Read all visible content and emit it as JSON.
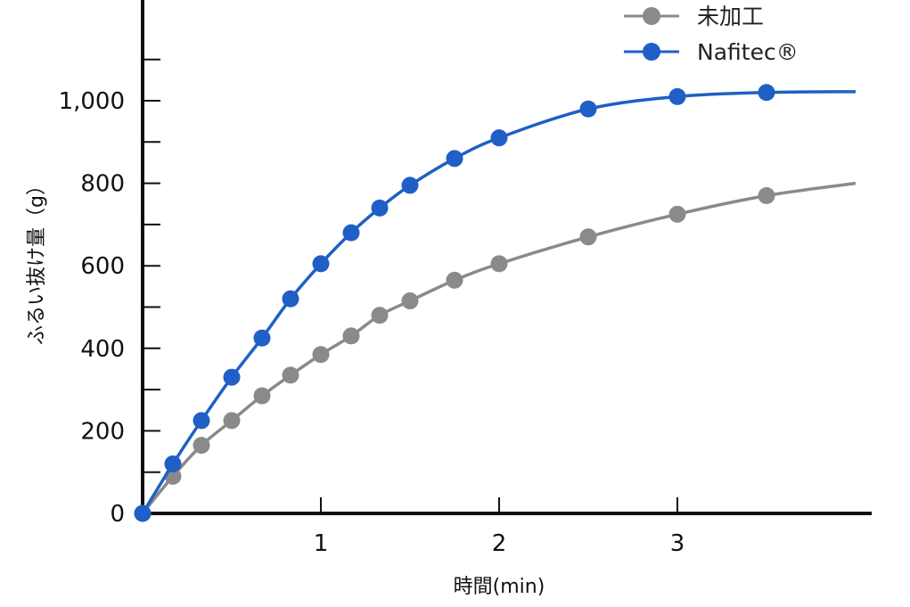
{
  "chart_data": {
    "type": "line",
    "title": "",
    "xlabel": "時間(min)",
    "ylabel": "ふるい抜け量（g）",
    "xlim": [
      0,
      4.1
    ],
    "ylim": [
      0,
      1200
    ],
    "x_ticks": [
      1,
      2,
      3
    ],
    "x_tick_labels": [
      "1",
      "2",
      "3"
    ],
    "y_ticks": [
      0,
      200,
      400,
      600,
      800,
      1000
    ],
    "y_tick_labels": [
      "0",
      "200",
      "400",
      "600",
      "800",
      "1,000"
    ],
    "y_minor_ticks": [
      100,
      300,
      500,
      700,
      900,
      1100
    ],
    "grid": false,
    "legend": "top-right",
    "series": [
      {
        "name": "未加工",
        "color": "#8a8a8a",
        "points": [
          [
            0,
            0
          ],
          [
            0.17,
            90
          ],
          [
            0.33,
            165
          ],
          [
            0.5,
            225
          ],
          [
            0.67,
            285
          ],
          [
            0.83,
            335
          ],
          [
            1.0,
            385
          ],
          [
            1.17,
            430
          ],
          [
            1.33,
            480
          ],
          [
            1.5,
            515
          ],
          [
            1.75,
            565
          ],
          [
            2.0,
            605
          ],
          [
            2.5,
            670
          ],
          [
            3.0,
            725
          ],
          [
            3.5,
            770
          ]
        ],
        "line_end": [
          4.0,
          800
        ]
      },
      {
        "name": "Nafitec®",
        "color": "#1f5fc6",
        "points": [
          [
            0,
            0
          ],
          [
            0.17,
            120
          ],
          [
            0.33,
            225
          ],
          [
            0.5,
            330
          ],
          [
            0.67,
            425
          ],
          [
            0.83,
            520
          ],
          [
            1.0,
            605
          ],
          [
            1.17,
            680
          ],
          [
            1.33,
            740
          ],
          [
            1.5,
            795
          ],
          [
            1.75,
            860
          ],
          [
            2.0,
            910
          ],
          [
            2.5,
            980
          ],
          [
            3.0,
            1010
          ],
          [
            3.5,
            1020
          ]
        ],
        "line_end": [
          4.0,
          1022
        ]
      }
    ]
  }
}
